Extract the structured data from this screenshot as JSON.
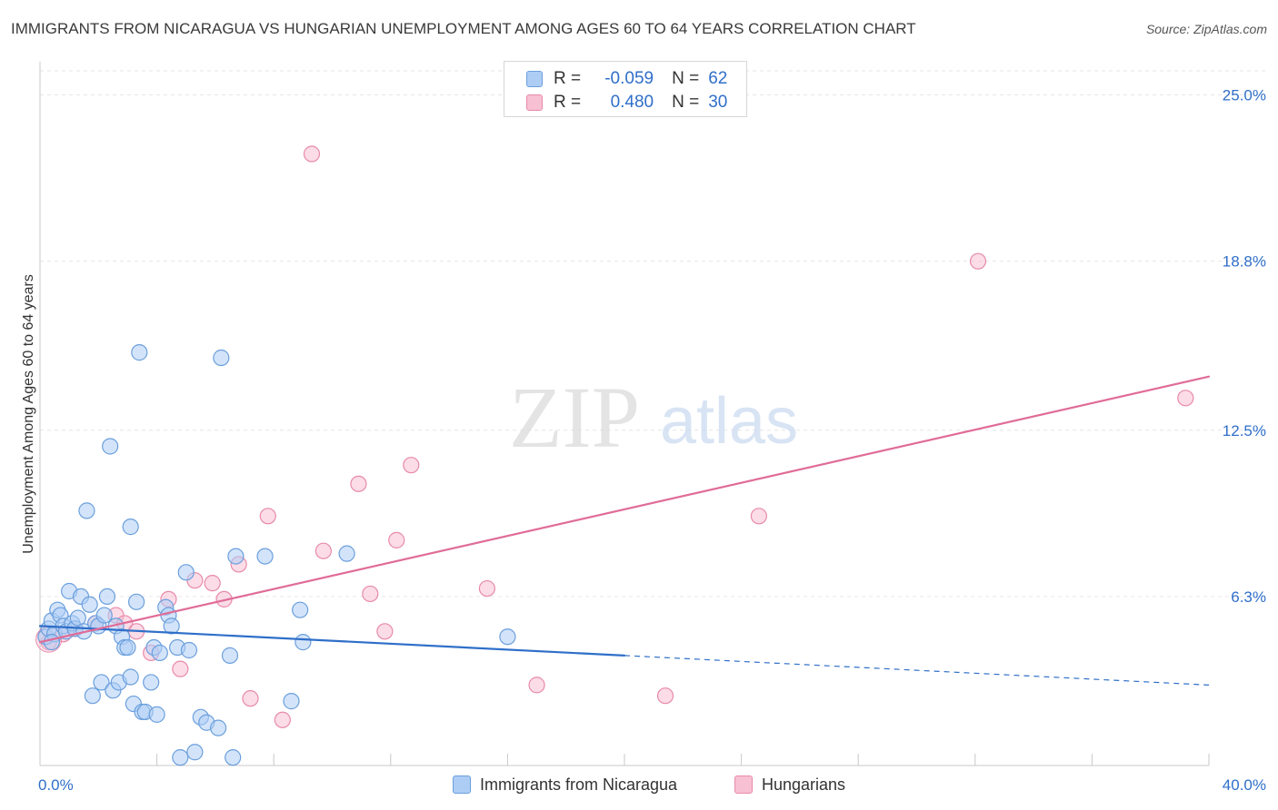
{
  "title": "IMMIGRANTS FROM NICARAGUA VS HUNGARIAN UNEMPLOYMENT AMONG AGES 60 TO 64 YEARS CORRELATION CHART",
  "source": "Source: ZipAtlas.com",
  "watermark": {
    "zip": "ZIP",
    "atlas": "atlas"
  },
  "legend_top": {
    "rows": [
      {
        "r_label": "R =",
        "r_value": "-0.059",
        "n_label": "N =",
        "n_value": "62"
      },
      {
        "r_label": "R =",
        "r_value": "0.480",
        "n_label": "N =",
        "n_value": "30"
      }
    ]
  },
  "colors": {
    "blue_fill": "#aecdf5",
    "blue_stroke": "#6b9fdc",
    "blue_line": "#2f6fc9",
    "pink_fill": "#f8c0d3",
    "pink_stroke": "#e88aaa",
    "pink_line": "#e06c97",
    "grid": "#e6e6e6",
    "axis_text": "#2f6fc9"
  },
  "chart_data": {
    "type": "scatter",
    "title": "IMMIGRANTS FROM NICARAGUA VS HUNGARIAN UNEMPLOYMENT AMONG AGES 60 TO 64 YEARS CORRELATION CHART",
    "xlabel": "",
    "ylabel": "Unemployment Among Ages 60 to 64 years",
    "xlim": [
      0,
      40
    ],
    "ylim": [
      0,
      26
    ],
    "x_tick_labels": [
      {
        "value": 0,
        "label": "0.0%"
      },
      {
        "value": 40,
        "label": "40.0%"
      }
    ],
    "y_tick_labels": [
      {
        "value": 6.3,
        "label": "6.3%"
      },
      {
        "value": 12.5,
        "label": "12.5%"
      },
      {
        "value": 18.8,
        "label": "18.8%"
      },
      {
        "value": 25.0,
        "label": "25.0%"
      }
    ],
    "series": [
      {
        "name": "Immigrants from Nicaragua",
        "color_key": "blue",
        "R": -0.059,
        "N": 62,
        "trend": {
          "x0": 0,
          "y0": 5.2,
          "x1": 20,
          "y1": 4.1,
          "dashed_to_x": 40,
          "dashed_to_y": 3.0
        },
        "points": [
          [
            0.2,
            4.8
          ],
          [
            0.3,
            5.1
          ],
          [
            0.4,
            5.4
          ],
          [
            0.5,
            4.9
          ],
          [
            0.6,
            5.8
          ],
          [
            0.7,
            5.6
          ],
          [
            0.8,
            5.2
          ],
          [
            0.9,
            5.0
          ],
          [
            1.0,
            6.5
          ],
          [
            1.1,
            5.3
          ],
          [
            1.2,
            5.1
          ],
          [
            1.3,
            5.5
          ],
          [
            1.4,
            6.3
          ],
          [
            1.5,
            5.0
          ],
          [
            1.6,
            9.5
          ],
          [
            1.7,
            6.0
          ],
          [
            1.8,
            2.6
          ],
          [
            1.9,
            5.3
          ],
          [
            2.0,
            5.2
          ],
          [
            2.1,
            3.1
          ],
          [
            2.2,
            5.6
          ],
          [
            2.3,
            6.3
          ],
          [
            2.4,
            11.9
          ],
          [
            2.5,
            2.8
          ],
          [
            2.6,
            5.2
          ],
          [
            2.7,
            3.1
          ],
          [
            2.8,
            4.8
          ],
          [
            2.9,
            4.4
          ],
          [
            3.0,
            4.4
          ],
          [
            3.1,
            3.3
          ],
          [
            3.1,
            8.9
          ],
          [
            3.2,
            2.3
          ],
          [
            3.3,
            6.1
          ],
          [
            3.4,
            15.4
          ],
          [
            3.5,
            2.0
          ],
          [
            3.6,
            2.0
          ],
          [
            3.8,
            3.1
          ],
          [
            3.9,
            4.4
          ],
          [
            4.0,
            1.9
          ],
          [
            4.1,
            4.2
          ],
          [
            4.3,
            5.9
          ],
          [
            4.4,
            5.6
          ],
          [
            4.5,
            5.2
          ],
          [
            4.7,
            4.4
          ],
          [
            4.8,
            0.3
          ],
          [
            5.0,
            7.2
          ],
          [
            5.1,
            4.3
          ],
          [
            5.3,
            0.5
          ],
          [
            5.5,
            1.8
          ],
          [
            5.7,
            1.6
          ],
          [
            6.1,
            1.4
          ],
          [
            6.2,
            15.2
          ],
          [
            6.5,
            4.1
          ],
          [
            6.6,
            0.3
          ],
          [
            6.7,
            7.8
          ],
          [
            7.7,
            7.8
          ],
          [
            8.6,
            2.4
          ],
          [
            8.9,
            5.8
          ],
          [
            9.0,
            4.6
          ],
          [
            10.5,
            7.9
          ],
          [
            16.0,
            4.8
          ],
          [
            0.4,
            4.6
          ]
        ]
      },
      {
        "name": "Hungarians",
        "color_key": "pink",
        "R": 0.48,
        "N": 30,
        "trend": {
          "x0": 0,
          "y0": 4.6,
          "x1": 40,
          "y1": 14.5
        },
        "points": [
          [
            0.3,
            4.6
          ],
          [
            0.8,
            4.9
          ],
          [
            1.2,
            5.1
          ],
          [
            1.9,
            5.3
          ],
          [
            2.6,
            5.6
          ],
          [
            2.9,
            5.3
          ],
          [
            3.3,
            5.0
          ],
          [
            3.8,
            4.2
          ],
          [
            4.4,
            6.2
          ],
          [
            4.8,
            3.6
          ],
          [
            5.3,
            6.9
          ],
          [
            5.9,
            6.8
          ],
          [
            6.3,
            6.2
          ],
          [
            6.8,
            7.5
          ],
          [
            7.2,
            2.5
          ],
          [
            7.8,
            9.3
          ],
          [
            8.3,
            1.7
          ],
          [
            9.3,
            22.8
          ],
          [
            9.7,
            8.0
          ],
          [
            10.9,
            10.5
          ],
          [
            11.3,
            6.4
          ],
          [
            11.8,
            5.0
          ],
          [
            12.2,
            8.4
          ],
          [
            12.7,
            11.2
          ],
          [
            15.3,
            6.6
          ],
          [
            17.0,
            3.0
          ],
          [
            21.4,
            2.6
          ],
          [
            24.6,
            9.3
          ],
          [
            32.1,
            18.8
          ],
          [
            39.2,
            13.7
          ]
        ]
      }
    ],
    "legend": [
      {
        "label": "Immigrants from Nicaragua"
      },
      {
        "label": "Hungarians"
      }
    ]
  }
}
